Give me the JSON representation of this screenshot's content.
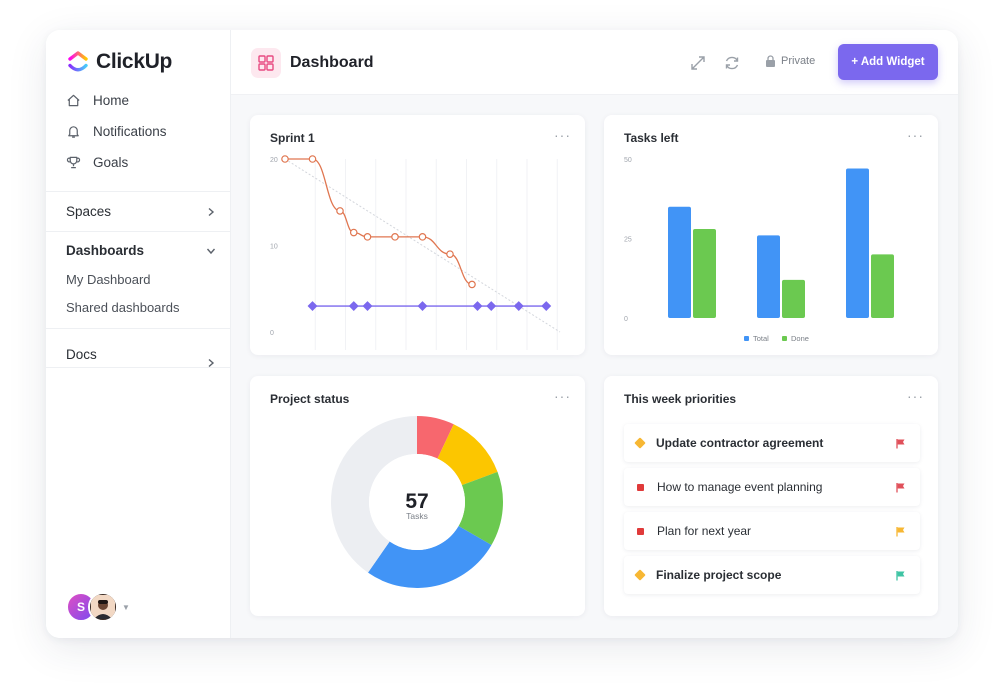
{
  "app": {
    "name": "ClickUp"
  },
  "sidebar": {
    "nav": [
      {
        "label": "Home",
        "icon": "home-icon"
      },
      {
        "label": "Notifications",
        "icon": "bell-icon"
      },
      {
        "label": "Goals",
        "icon": "trophy-icon"
      }
    ],
    "spaces": {
      "label": "Spaces"
    },
    "dashboards": {
      "label": "Dashboards",
      "items": [
        {
          "label": "My Dashboard"
        },
        {
          "label": "Shared dashboards"
        }
      ]
    },
    "docs": {
      "label": "Docs"
    },
    "avatars": [
      {
        "initial": "S"
      },
      {
        "initial": ""
      }
    ]
  },
  "header": {
    "title": "Dashboard",
    "privacy": "Private",
    "add_widget": "+ Add Widget"
  },
  "colors": {
    "accent": "#7b68ee",
    "total": "#4194f6",
    "done": "#6bc950",
    "burndown": "#e07650",
    "scope": "#7b68ee"
  },
  "widgets": {
    "sprint": {
      "title": "Sprint 1",
      "more": "···",
      "chart_data": {
        "type": "line",
        "y_ticks": [
          "20",
          "10",
          "0"
        ],
        "ylim": [
          0,
          20
        ],
        "xlim": [
          0,
          10
        ],
        "series": [
          {
            "x": [
              0,
              1,
              2,
              2.5,
              3,
              4,
              5,
              6,
              6.8
            ],
            "values": [
              20,
              20,
              14,
              11.5,
              11,
              11,
              11,
              9,
              5.5
            ]
          },
          {
            "x": [
              1,
              2.5,
              3,
              5,
              7,
              7.5,
              8.5,
              9.5
            ],
            "values": [
              3,
              3,
              3,
              3,
              3,
              3,
              3,
              3
            ]
          }
        ],
        "ideal": {
          "x": [
            0,
            10
          ],
          "values": [
            20,
            0
          ]
        }
      }
    },
    "tasks_left": {
      "title": "Tasks left",
      "more": "···",
      "chart_data": {
        "type": "bar",
        "y_ticks": [
          "50",
          "25",
          "0"
        ],
        "ylim": [
          0,
          50
        ],
        "categories": [
          "",
          "",
          ""
        ],
        "series": [
          {
            "name": "Total",
            "values": [
              35,
              26,
              47
            ]
          },
          {
            "name": "Done",
            "values": [
              28,
              12,
              20
            ]
          }
        ],
        "legend": "bottom"
      }
    },
    "project_status": {
      "title": "Project status",
      "more": "···",
      "center_value": "57",
      "center_label": "Tasks",
      "chart_data": {
        "type": "pie",
        "slices": [
          {
            "value": 4,
            "color": "#f7676e"
          },
          {
            "value": 7,
            "color": "#fcc600"
          },
          {
            "value": 8,
            "color": "#6bc950"
          },
          {
            "value": 15,
            "color": "#4194f6"
          },
          {
            "value": 23,
            "color": "#eceef2"
          }
        ]
      }
    },
    "priorities": {
      "title": "This week priorities",
      "more": "···",
      "items": [
        {
          "label": "Update contractor agreement",
          "marker": "diamond",
          "flag_color": "#e0505a",
          "bold": true
        },
        {
          "label": "How to manage event planning",
          "marker": "square",
          "flag_color": "#e0505a",
          "bold": false
        },
        {
          "label": "Plan for next year",
          "marker": "square",
          "flag_color": "#f7b733",
          "bold": false
        },
        {
          "label": "Finalize project scope",
          "marker": "diamond",
          "flag_color": "#3fc4a4",
          "bold": true
        }
      ]
    }
  }
}
